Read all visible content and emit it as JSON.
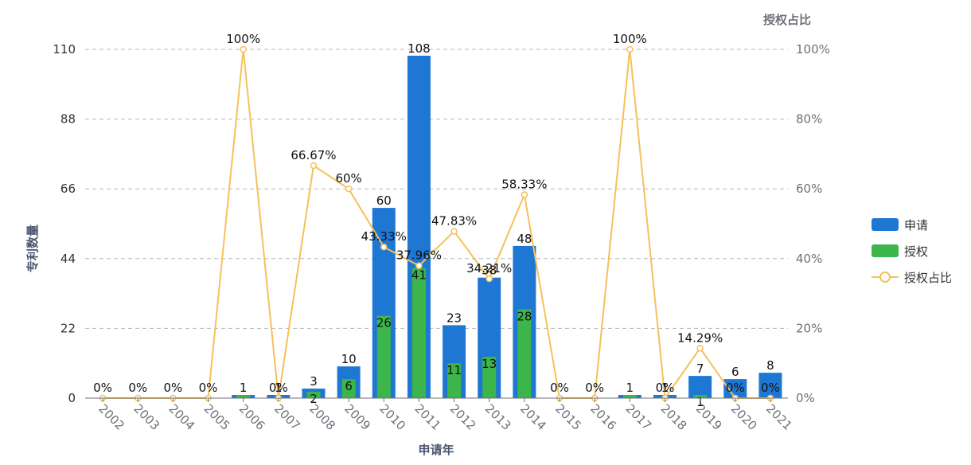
{
  "chart_data": {
    "type": "bar",
    "categories": [
      "2002",
      "2003",
      "2004",
      "2005",
      "2006",
      "2007",
      "2008",
      "2009",
      "2010",
      "2011",
      "2012",
      "2013",
      "2014",
      "2015",
      "2016",
      "2017",
      "2018",
      "2019",
      "2020",
      "2021"
    ],
    "series": [
      {
        "name": "申请",
        "type": "bar",
        "color": "#1f77d4",
        "values": [
          0,
          0,
          0,
          0,
          1,
          1,
          3,
          10,
          60,
          108,
          23,
          38,
          48,
          0,
          0,
          1,
          1,
          7,
          6,
          8
        ],
        "labels": [
          "",
          "",
          "",
          "",
          "1",
          "1",
          "3",
          "10",
          "60",
          "108",
          "23",
          "38",
          "48",
          "",
          "",
          "1",
          "1",
          "7",
          "6",
          "8"
        ]
      },
      {
        "name": "授权",
        "type": "bar",
        "color": "#3cb54a",
        "values": [
          0,
          0,
          0,
          0,
          1,
          0,
          2,
          6,
          26,
          41,
          11,
          13,
          28,
          0,
          0,
          1,
          0,
          1,
          0,
          0
        ],
        "labels": [
          "",
          "",
          "",
          "",
          "",
          "",
          "2",
          "6",
          "26",
          "41",
          "11",
          "13",
          "28",
          "",
          "",
          "",
          "",
          "1",
          "",
          ""
        ]
      },
      {
        "name": "授权占比",
        "type": "line",
        "axis": "right",
        "color": "#f5c15a",
        "values": [
          0,
          0,
          0,
          0,
          100,
          0,
          66.67,
          60,
          43.33,
          37.96,
          47.83,
          34.21,
          58.33,
          0,
          0,
          100,
          0,
          14.29,
          0,
          0
        ],
        "labels": [
          "0%",
          "0%",
          "0%",
          "0%",
          "100%",
          "0%",
          "66.67%",
          "60%",
          "43.33%",
          "37.96%",
          "47.83%",
          "34.21%",
          "58.33%",
          "0%",
          "0%",
          "100%",
          "0%",
          "14.29%",
          "0%",
          "0%"
        ]
      }
    ],
    "xlabel": "申请年",
    "ylabel": "专利数量",
    "y2label": "授权占比",
    "ylim": [
      0,
      110
    ],
    "yticks": [
      0,
      22,
      44,
      66,
      88,
      110
    ],
    "y2lim": [
      0,
      100
    ],
    "y2ticks": [
      "0%",
      "20%",
      "40%",
      "60%",
      "80%",
      "100%"
    ],
    "grid": true,
    "legend_position": "right",
    "legend": [
      "申请",
      "授权",
      "授权占比"
    ]
  }
}
